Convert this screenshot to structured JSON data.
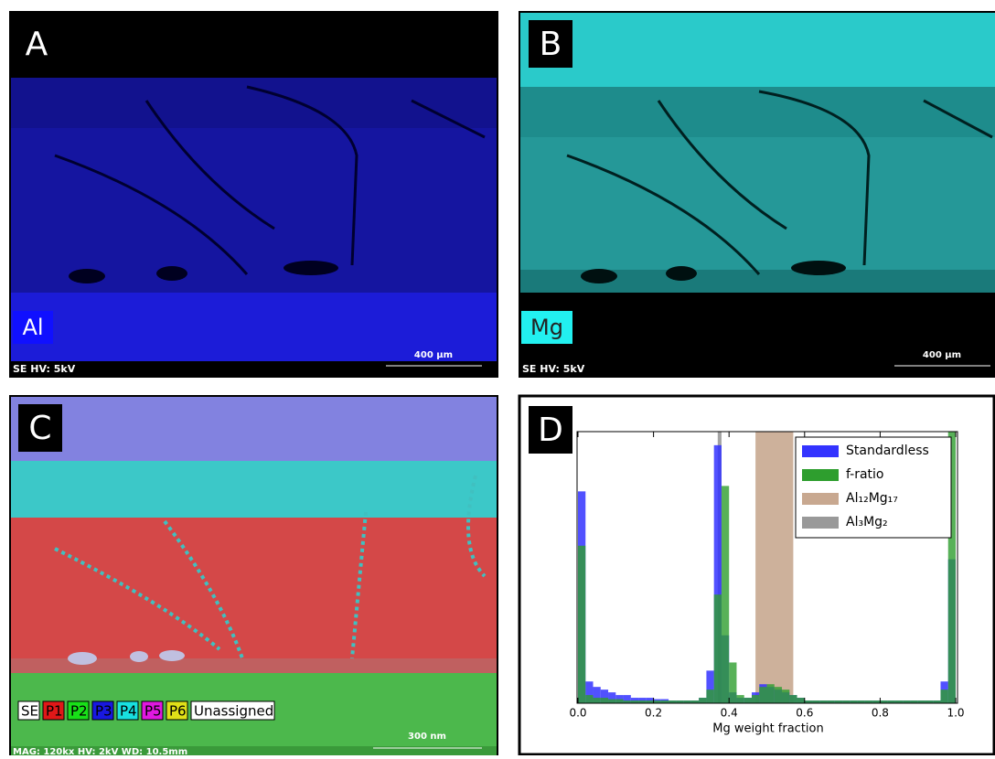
{
  "panels": [
    {
      "label": "A",
      "element": "Al",
      "info": "SE HV: 5kV",
      "scale": "400 µm"
    },
    {
      "label": "B",
      "element": "Mg",
      "info": "SE HV: 5kV",
      "scale": "400 µm"
    },
    {
      "label": "C",
      "legend": [
        {
          "name": "SE",
          "color": "#ffffff"
        },
        {
          "name": "P1",
          "color": "#e01818"
        },
        {
          "name": "P2",
          "color": "#18e018"
        },
        {
          "name": "P3",
          "color": "#1818e0"
        },
        {
          "name": "P4",
          "color": "#18e0e0"
        },
        {
          "name": "P5",
          "color": "#e018e0"
        },
        {
          "name": "P6",
          "color": "#e0e018"
        },
        {
          "name": "Unassigned",
          "color": "#ffffff"
        }
      ],
      "info": "MAG: 120kx HV: 2kV WD: 10.5mm",
      "scale": "300 nm"
    },
    {
      "label": "D"
    }
  ],
  "chart_data": {
    "type": "histogram",
    "x_label": "Mg weight fraction",
    "bins": [
      0,
      0.02,
      0.04,
      0.06,
      0.08,
      0.1,
      0.12,
      0.14,
      0.16,
      0.18,
      0.2,
      0.22,
      0.24,
      0.26,
      0.28,
      0.3,
      0.32,
      0.34,
      0.36,
      0.38,
      0.4,
      0.42,
      0.44,
      0.46,
      0.48,
      0.5,
      0.52,
      0.54,
      0.56,
      0.58,
      0.6,
      0.62,
      0.64,
      0.66,
      0.68,
      0.7,
      0.72,
      0.74,
      0.76,
      0.78,
      0.8,
      0.82,
      0.84,
      0.86,
      0.88,
      0.9,
      0.92,
      0.94,
      0.96,
      0.98,
      1
    ],
    "series": [
      {
        "name": "Standardless",
        "color": "#3333ff",
        "values": [
          78,
          8,
          6,
          5,
          4,
          3,
          3,
          2,
          2,
          2,
          1.5,
          1.5,
          1,
          1,
          1,
          1,
          2,
          12,
          95,
          25,
          4,
          2,
          2,
          4,
          7,
          6,
          5,
          4,
          3,
          2,
          1,
          1,
          1,
          1,
          1,
          1,
          1,
          1,
          1,
          1,
          1,
          1,
          1,
          1,
          1,
          1,
          1,
          1,
          8,
          53
        ]
      },
      {
        "name": "f-ratio",
        "color": "#2e9e2e",
        "values": [
          58,
          3,
          2,
          2,
          1.5,
          1.5,
          1,
          1,
          1,
          1,
          1,
          1,
          1,
          1,
          1,
          1,
          2,
          5,
          40,
          80,
          15,
          3,
          2,
          3,
          6,
          7,
          6,
          5,
          3,
          2,
          1,
          1,
          1,
          1,
          1,
          1,
          1,
          1,
          1,
          1,
          1,
          1,
          1,
          1,
          1,
          1,
          1,
          1,
          5,
          100
        ]
      }
    ],
    "bands": [
      {
        "name": "Al₁₂Mg₁₇",
        "color": "#c8a890",
        "range": [
          0.47,
          0.57
        ]
      },
      {
        "name": "Al₃Mg₂",
        "color": "#999999",
        "range": [
          0.37,
          0.38
        ]
      }
    ],
    "xlim": [
      0,
      1
    ],
    "ylim": [
      0,
      100
    ],
    "xticks": [
      {
        "value": 0,
        "label": "0.0"
      },
      0.2,
      0.4,
      0.6,
      0.8,
      {
        "value": 1,
        "label": "1.0"
      }
    ],
    "legend": "upper right"
  }
}
